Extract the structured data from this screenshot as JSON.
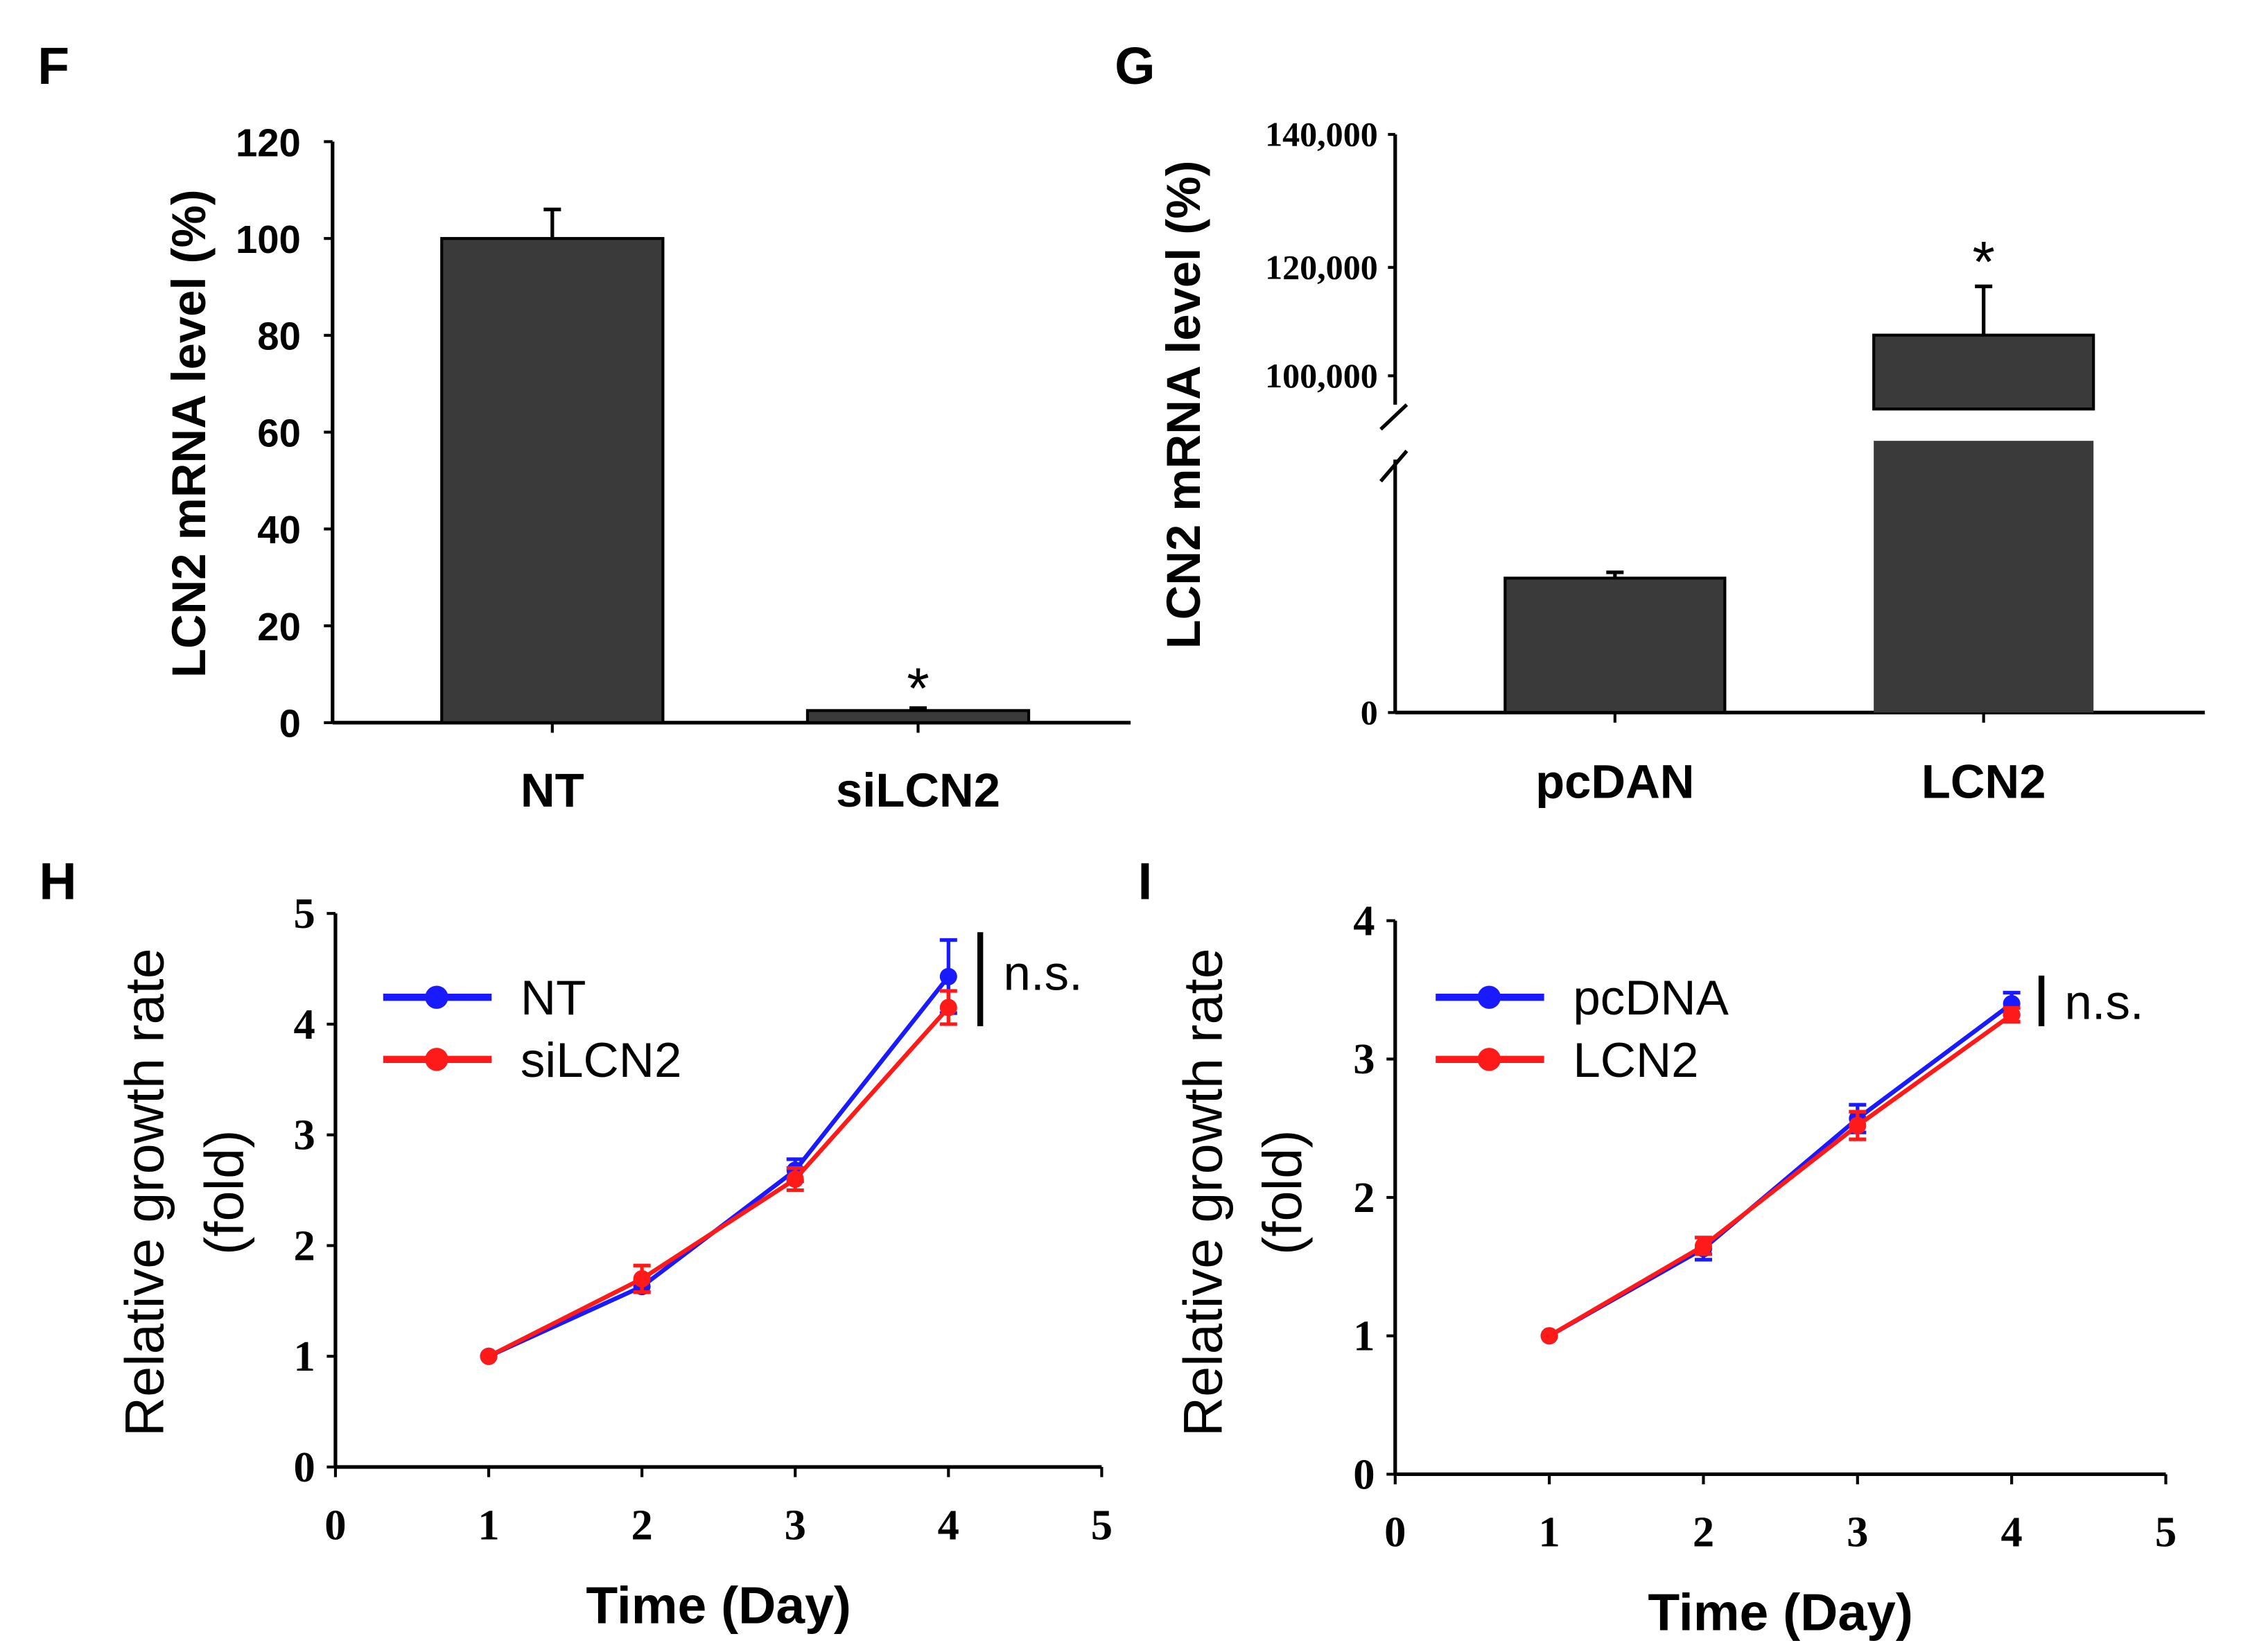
{
  "chart_data": [
    {
      "panel": "F",
      "type": "bar",
      "title": "",
      "xlabel": "",
      "ylabel": "LCN2 mRNA level (%)",
      "categories": [
        "NT",
        "siLCN2"
      ],
      "values": [
        100,
        2.5
      ],
      "errors": [
        6,
        0.5
      ],
      "annotations": [
        "",
        "*"
      ],
      "ylim": [
        0,
        120
      ],
      "yticks": [
        0,
        20,
        40,
        60,
        80,
        100,
        120
      ]
    },
    {
      "panel": "G",
      "type": "bar",
      "title": "",
      "xlabel": "",
      "ylabel": "LCN2 mRNA level (%)",
      "categories": [
        "pcDAN",
        "LCN2"
      ],
      "values": [
        100,
        107500
      ],
      "errors": [
        4,
        9000
      ],
      "annotations": [
        "",
        "*"
      ],
      "axis_break": true,
      "yticks": [
        "0",
        "100,000",
        "120,000",
        "140,000"
      ],
      "ytick_values": [
        0,
        100000,
        120000,
        140000
      ]
    },
    {
      "panel": "H",
      "type": "line",
      "xlabel": "Time (Day)",
      "ylabel": "Relative growth rate",
      "ylabel2": "(fold)",
      "xlim": [
        0,
        5
      ],
      "ylim": [
        0,
        5
      ],
      "xticks": [
        0,
        1,
        2,
        3,
        4,
        5
      ],
      "yticks": [
        0,
        1,
        2,
        3,
        4,
        5
      ],
      "x": [
        1,
        2,
        3,
        4
      ],
      "series": [
        {
          "name": "NT",
          "color": "#1a1aff",
          "values": [
            1,
            1.63,
            2.68,
            4.43
          ],
          "errors": [
            0,
            0.05,
            0.1,
            0.33
          ]
        },
        {
          "name": "siLCN2",
          "color": "#ff1a1a",
          "values": [
            1,
            1.7,
            2.6,
            4.15
          ],
          "errors": [
            0,
            0.12,
            0.1,
            0.15
          ]
        }
      ],
      "annotation": "n.s.",
      "legend": "top-left"
    },
    {
      "panel": "I",
      "type": "line",
      "xlabel": "Time (Day)",
      "ylabel": "Relative growth rate",
      "ylabel2": "(fold)",
      "xlim": [
        0,
        5
      ],
      "ylim": [
        0,
        4
      ],
      "xticks": [
        0,
        1,
        2,
        3,
        4,
        5
      ],
      "yticks": [
        0,
        1,
        2,
        3,
        4
      ],
      "x": [
        1,
        2,
        3,
        4
      ],
      "series": [
        {
          "name": "pcDNA",
          "color": "#1a1aff",
          "values": [
            1,
            1.63,
            2.57,
            3.4
          ],
          "errors": [
            0,
            0.08,
            0.1,
            0.08
          ]
        },
        {
          "name": "LCN2",
          "color": "#ff1a1a",
          "values": [
            1,
            1.65,
            2.52,
            3.32
          ],
          "errors": [
            0,
            0.06,
            0.1,
            0.05
          ]
        }
      ],
      "annotation": "n.s.",
      "legend": "top-left"
    }
  ],
  "bar_color": "#3a3a3a"
}
